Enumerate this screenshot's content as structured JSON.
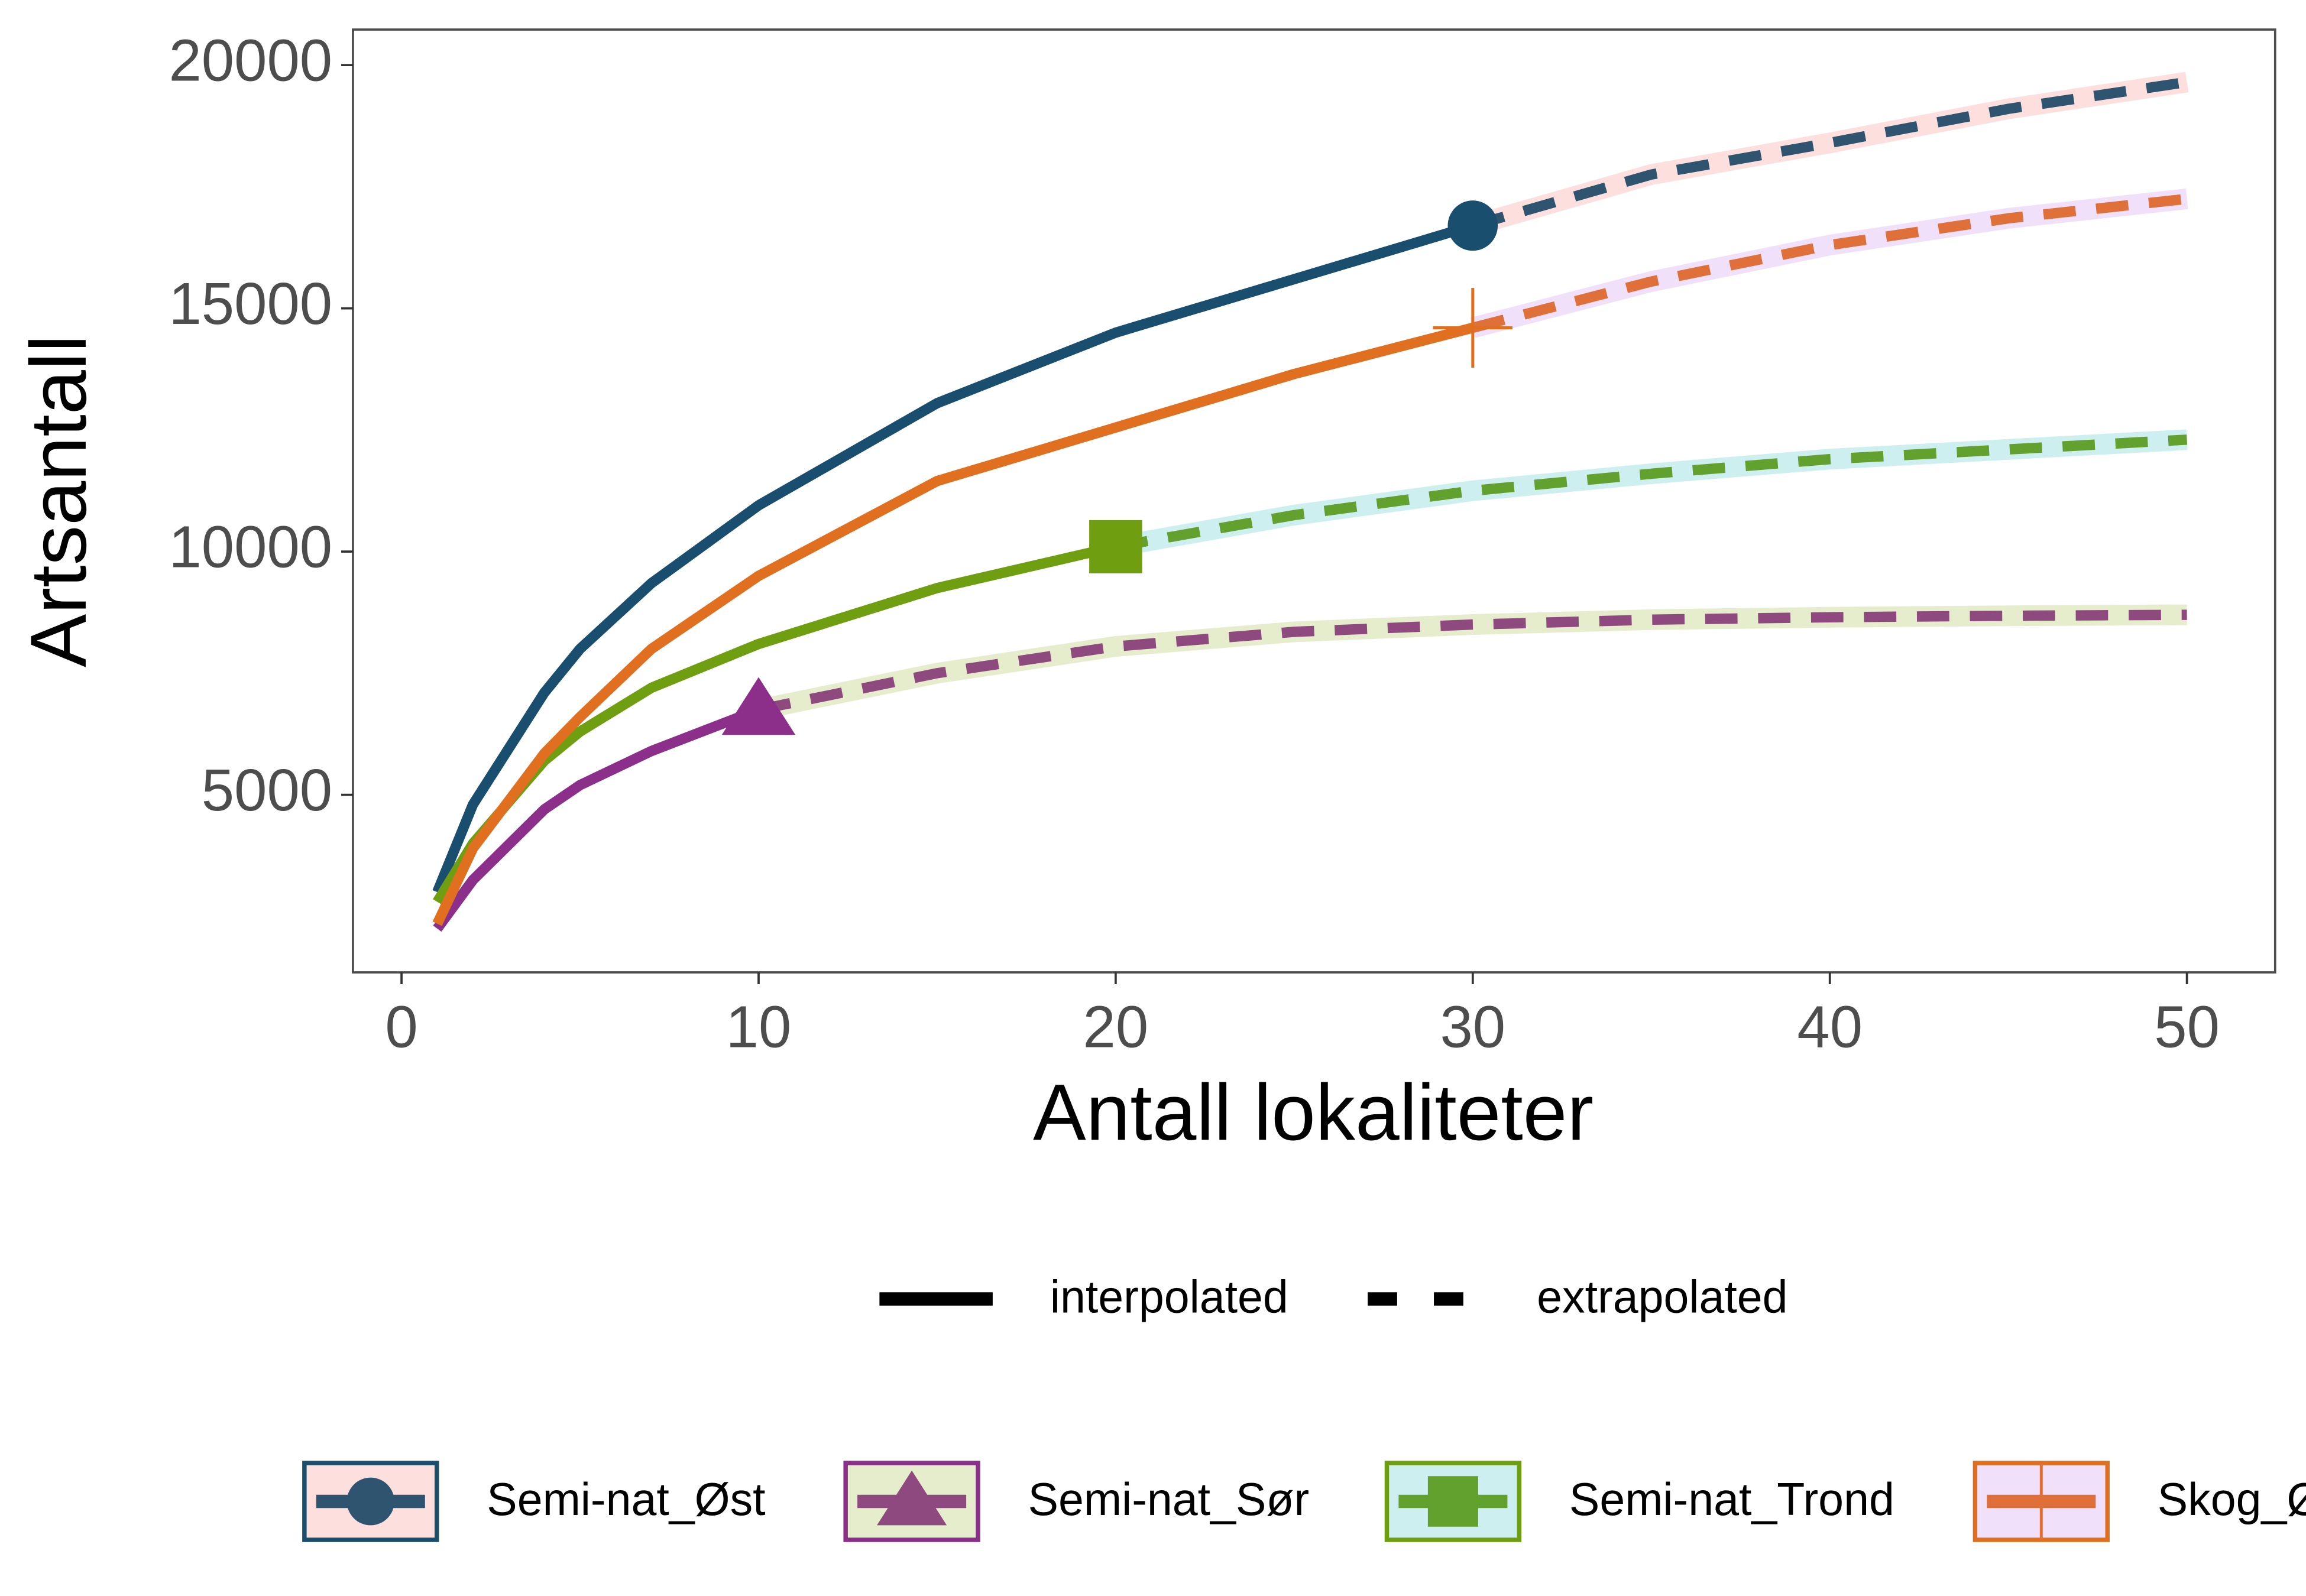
{
  "chart_data": {
    "type": "line",
    "x_label": "Antall lokaliteter",
    "y_label": "Artsantall",
    "x": [
      1,
      2,
      4,
      5,
      7,
      10,
      15,
      20,
      25,
      30,
      35,
      40,
      45,
      50
    ],
    "series": [
      {
        "name": "Semi-nat_Øst",
        "color": "#1a4e6e",
        "extrapolated_color": "#2e5470",
        "band_color": "#fde0dd",
        "marker": "circle",
        "observed_x": 30,
        "values": [
          3000,
          4800,
          7100,
          8000,
          9350,
          10950,
          13050,
          14500,
          15600,
          16700,
          17750,
          18400,
          19100,
          19650
        ]
      },
      {
        "name": "Semi-nat_Sør",
        "color": "#8b2f8b",
        "extrapolated_color": "#8e4a7e",
        "band_color": "#e5edcc",
        "marker": "triangle",
        "observed_x": 10,
        "values": [
          2250,
          3250,
          4700,
          5200,
          5900,
          6750,
          7500,
          8050,
          8350,
          8500,
          8600,
          8650,
          8680,
          8700
        ]
      },
      {
        "name": "Semi-nat_Trond",
        "color": "#6f9e10",
        "extrapolated_color": "#62a12e",
        "band_color": "#cdeff0",
        "marker": "square",
        "observed_x": 20,
        "values": [
          2800,
          4000,
          5700,
          6300,
          7200,
          8100,
          9250,
          10100,
          10750,
          11250,
          11600,
          11900,
          12100,
          12300
        ]
      },
      {
        "name": "Skog_Øst",
        "color": "#e07020",
        "extrapolated_color": "#e0703a",
        "band_color": "#f0e0fa",
        "marker": "plus",
        "observed_x": 30,
        "values": [
          2350,
          3900,
          5850,
          6600,
          8000,
          9500,
          11450,
          12550,
          13650,
          14600,
          15550,
          16300,
          16850,
          17250
        ]
      }
    ],
    "linetype_labels": [
      "interpolated",
      "extrapolated"
    ],
    "xlim": [
      -1.36,
      52.47
    ],
    "xticks": [
      0,
      10,
      20,
      30,
      40,
      50
    ],
    "ylim": [
      1350,
      20730
    ],
    "yticks": [
      5000,
      10000,
      15000,
      20000
    ],
    "legend_position": "bottom"
  }
}
